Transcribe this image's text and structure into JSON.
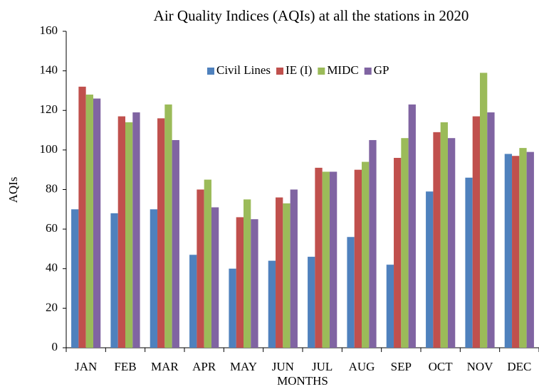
{
  "chart_data": {
    "type": "bar",
    "title": "Air Quality Indices (AQIs) at all the stations in 2020",
    "x_label": "MONTHS",
    "y_label": "AQIs",
    "categories": [
      "JAN",
      "FEB",
      "MAR",
      "APR",
      "MAY",
      "JUN",
      "JUL",
      "AUG",
      "SEP",
      "OCT",
      "NOV",
      "DEC"
    ],
    "series": [
      {
        "name": "Civil Lines",
        "color": "#4f81bd",
        "values": [
          70,
          68,
          70,
          47,
          40,
          44,
          46,
          56,
          42,
          79,
          86,
          98
        ]
      },
      {
        "name": "IE (I)",
        "color": "#c0504d",
        "values": [
          132,
          117,
          116,
          80,
          66,
          76,
          91,
          90,
          96,
          109,
          117,
          97
        ]
      },
      {
        "name": "MIDC",
        "color": "#9bbb59",
        "values": [
          128,
          114,
          123,
          85,
          75,
          73,
          89,
          94,
          106,
          114,
          139,
          101
        ]
      },
      {
        "name": "GP",
        "color": "#8064a2",
        "values": [
          126,
          119,
          105,
          71,
          65,
          80,
          89,
          105,
          123,
          106,
          119,
          99
        ]
      }
    ],
    "ylim": [
      0,
      160
    ],
    "yticks": [
      0,
      20,
      40,
      60,
      80,
      100,
      120,
      140,
      160
    ],
    "grid": false,
    "legend": "top"
  }
}
